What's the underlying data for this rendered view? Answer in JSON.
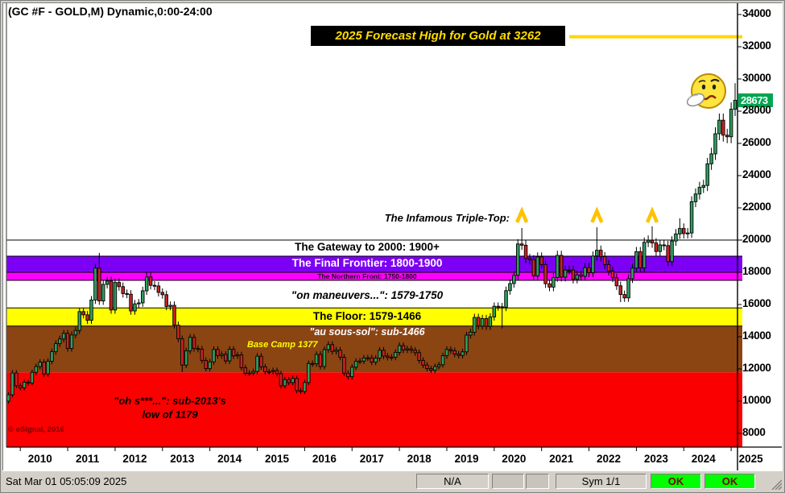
{
  "window": {
    "title": "(GC #F - GOLD,M) Dynamic,0:00-24:00"
  },
  "banner": {
    "text": "2025 Forecast High for Gold at 3262",
    "line_color": "#ffd700"
  },
  "forecast": {
    "level": 3262
  },
  "current_price": {
    "label": "28673",
    "value": 2867.3,
    "bg": "#00a550"
  },
  "annotations": {
    "triple_top": "The Infamous Triple-Top:",
    "base_camp": "Base Camp 1377",
    "oh_line1": "\"oh s***...\":  sub-2013's",
    "oh_line2": "low of 1179",
    "watermark": "© eSignal, 2016",
    "carets": {
      "months": [
        "2020-08",
        "2022-03",
        "2023-05"
      ],
      "color": "#ffc200"
    },
    "smiley_icon": "thinking-smiley"
  },
  "zones": [
    {
      "name": "gateway",
      "label": "The Gateway to 2000:  1900+",
      "from": 1900,
      "to": 2000,
      "color": "#FFFFFF",
      "bordered": true
    },
    {
      "name": "final-frontier",
      "label": "The Final Frontier:  1800-1900",
      "from": 1800,
      "to": 1900,
      "color": "#7c00f4",
      "bordered": true
    },
    {
      "name": "northern-front",
      "label": "The Northern Front:  1750-1800",
      "from": 1750,
      "to": 1800,
      "color": "#ff00ff",
      "bordered": true
    },
    {
      "name": "on-maneuvers",
      "label": "\"on maneuvers...\":  1579-1750",
      "from": 1579,
      "to": 1750,
      "color": "#FFFFFF",
      "bordered": true
    },
    {
      "name": "floor",
      "label": "The Floor:  1579-1466",
      "from": 1466,
      "to": 1579,
      "color": "#ffff00",
      "bordered": true
    },
    {
      "name": "au-sous-sol",
      "label": "\"au sous-sol\":  sub-1466",
      "from": 1179,
      "to": 1466,
      "color": "#8b4513",
      "bordered": false
    },
    {
      "name": "oh-s",
      "label": "\"oh s***...\":  sub-2013's low of 1179",
      "from": null,
      "to": 1179,
      "color": "#fb0000",
      "bordered": false
    }
  ],
  "axis": {
    "price_ticks": [
      34000,
      32000,
      30000,
      28000,
      26000,
      24000,
      22000,
      20000,
      18000,
      16000,
      14000,
      12000,
      10000,
      8000
    ],
    "years": [
      2010,
      2011,
      2012,
      2013,
      2014,
      2015,
      2016,
      2017,
      2018,
      2019,
      2020,
      2021,
      2022,
      2023,
      2024,
      2025
    ]
  },
  "chart_data": {
    "type": "candlestick",
    "title": "GC #F - GOLD, Monthly",
    "start_month": "2009-10",
    "first_open": 1000,
    "closes": [
      1040,
      1175,
      1096,
      1083,
      1118,
      1113,
      1179,
      1215,
      1242,
      1169,
      1248,
      1307,
      1357,
      1386,
      1421,
      1327,
      1411,
      1439,
      1556,
      1536,
      1502,
      1628,
      1826,
      1622,
      1725,
      1746,
      1566,
      1737,
      1711,
      1668,
      1664,
      1560,
      1604,
      1610,
      1685,
      1771,
      1719,
      1715,
      1675,
      1661,
      1588,
      1595,
      1472,
      1387,
      1224,
      1312,
      1396,
      1327,
      1323,
      1253,
      1202,
      1244,
      1321,
      1283,
      1291,
      1250,
      1322,
      1281,
      1287,
      1208,
      1173,
      1175,
      1184,
      1279,
      1213,
      1183,
      1184,
      1190,
      1171,
      1095,
      1134,
      1115,
      1141,
      1065,
      1060,
      1116,
      1234,
      1232,
      1290,
      1215,
      1320,
      1351,
      1309,
      1317,
      1273,
      1174,
      1152,
      1211,
      1248,
      1249,
      1268,
      1269,
      1242,
      1267,
      1316,
      1280,
      1271,
      1273,
      1303,
      1345,
      1318,
      1325,
      1316,
      1301,
      1253,
      1224,
      1202,
      1192,
      1215,
      1226,
      1282,
      1321,
      1313,
      1292,
      1284,
      1306,
      1410,
      1428,
      1520,
      1466,
      1513,
      1464,
      1523,
      1589,
      1586,
      1583,
      1686,
      1730,
      1781,
      1976,
      1968,
      1886,
      1878,
      1777,
      1895,
      1848,
      1729,
      1708,
      1768,
      1905,
      1770,
      1814,
      1814,
      1757,
      1784,
      1775,
      1829,
      1797,
      1901,
      1937,
      1897,
      1848,
      1807,
      1766,
      1716,
      1662,
      1641,
      1760,
      1826,
      1928,
      1827,
      1986,
      1999,
      1982,
      1929,
      1970,
      1966,
      1866,
      1994,
      2038,
      2072,
      2040,
      2044,
      2238,
      2286,
      2327,
      2339,
      2473,
      2535,
      2660,
      2744,
      2651,
      2641,
      2812,
      2867.3
    ],
    "extremes": {
      "2011-09": {
        "high": 1920
      },
      "2013-06": {
        "low": 1180
      },
      "2015-12": {
        "low": 1046
      },
      "2020-03": {
        "low": 1451
      },
      "2020-08": {
        "high": 2075
      },
      "2022-03": {
        "high": 2079
      },
      "2022-09": {
        "low": 1615
      },
      "2023-05": {
        "high": 2085
      },
      "2023-12": {
        "high": 2135
      },
      "2025-02": {
        "high": 2974
      }
    },
    "up_color": "#2f9e5f",
    "down_color": "#cc2222",
    "ylim_display": [
      7200,
      34350
    ],
    "grid": false
  },
  "status_bar": {
    "datetime": "Sat Mar 01 05:05:09 2025",
    "field1": "N/A",
    "field2": "",
    "field3": "",
    "sym": "Sym 1/1",
    "ok1": "OK",
    "ok2": "OK",
    "ok_bg": "#00ff00"
  }
}
